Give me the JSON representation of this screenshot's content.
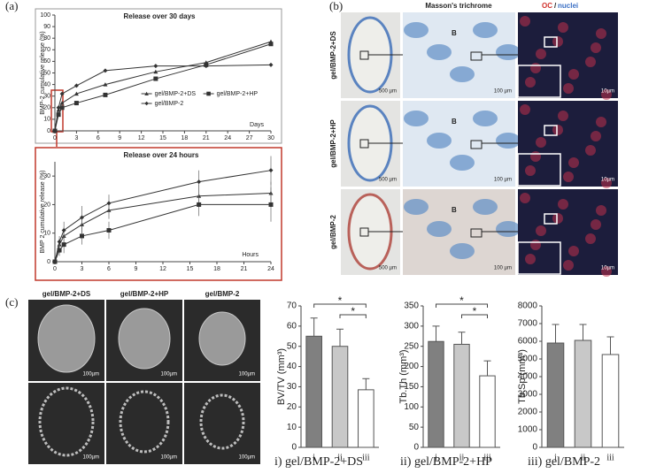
{
  "panels": {
    "a": "(a)",
    "b": "(b)",
    "c": "(c)"
  },
  "histology": {
    "stain": "Masson's trichrome",
    "oc": "OC",
    "slash": "/",
    "nuclei": "nuclei",
    "rows": [
      "gel/BMP-2+DS",
      "gel/BMP-2+HP",
      "gel/BMP-2"
    ],
    "scale_bars": [
      [
        "500 µm",
        "100 µm",
        "10µm"
      ],
      [
        "500 µm",
        "100 µm",
        "10µm"
      ],
      [
        "500 µm",
        "100 µm",
        "10µm"
      ]
    ],
    "bone_labels": [
      "B",
      "B",
      "B"
    ]
  },
  "microct": {
    "columns": [
      "gel/BMP-2+DS",
      "gel/BMP-2+HP",
      "gel/BMP-2"
    ],
    "scale_bars": [
      "100µm",
      "100µm",
      "100µm",
      "100µm",
      "100µm",
      "100µm"
    ]
  },
  "captions": [
    "i) gel/BMP-2+DS",
    "ii) gel/BMP-2+HP",
    "iii) gel/BMP-2"
  ],
  "chart_data": [
    {
      "type": "line",
      "title": "Release over 30 days",
      "y_label": "BMP-2 cumulative release (%)",
      "x_label": "Days",
      "x": [
        0,
        0.5,
        1,
        3,
        7,
        14,
        21,
        30
      ],
      "xlim": [
        0,
        30
      ],
      "xticks": [
        0,
        3,
        6,
        9,
        12,
        15,
        18,
        21,
        24,
        27,
        30
      ],
      "ylim": [
        0,
        100
      ],
      "yticks": [
        0,
        10,
        20,
        30,
        40,
        50,
        60,
        70,
        80,
        90,
        100
      ],
      "legend": "lower right",
      "series": [
        {
          "name": "gel/BMP-2+DS",
          "color": "#333333",
          "marker": "triangle",
          "values": [
            0,
            18,
            24,
            32,
            40,
            51,
            59,
            77
          ]
        },
        {
          "name": "gel/BMP-2+HP",
          "color": "#333333",
          "marker": "square",
          "values": [
            0,
            14,
            20,
            24,
            31,
            45,
            57,
            75
          ]
        },
        {
          "name": "gel/BMP-2",
          "color": "#333333",
          "marker": "diamond",
          "values": [
            0,
            20,
            32,
            39,
            52,
            56,
            56,
            57
          ]
        }
      ]
    },
    {
      "type": "line",
      "title": "Release over 24 hours",
      "y_label": "BMP 2 cumulative release (%)",
      "x_label": "Hours",
      "x": [
        0,
        0.5,
        1,
        3,
        6,
        16,
        24
      ],
      "xlim": [
        0,
        24
      ],
      "xticks": [
        0,
        3,
        6,
        9,
        12,
        15,
        18,
        21,
        24
      ],
      "ylim": [
        0,
        35
      ],
      "yticks": [
        0,
        10,
        20,
        30
      ],
      "series": [
        {
          "name": "gel/BMP-2+DS",
          "color": "#333333",
          "marker": "triangle",
          "values": [
            0,
            6,
            9,
            13,
            18,
            23,
            24
          ],
          "errors": [
            0,
            2,
            3,
            3,
            3,
            4,
            4
          ]
        },
        {
          "name": "gel/BMP-2+HP",
          "color": "#333333",
          "marker": "square",
          "values": [
            0,
            4,
            6,
            9,
            11,
            20,
            20
          ],
          "errors": [
            0,
            2,
            3,
            3,
            3,
            4,
            6
          ]
        },
        {
          "name": "gel/BMP-2",
          "color": "#333333",
          "marker": "diamond",
          "values": [
            0,
            7,
            11,
            15.5,
            20.5,
            28,
            32
          ],
          "errors": [
            0,
            2,
            3,
            4,
            3,
            4,
            5
          ]
        }
      ]
    },
    {
      "type": "bar",
      "y_label": "BV/TV (mm³)",
      "categories": [
        "i",
        "ii",
        "iii"
      ],
      "values": [
        55,
        50,
        28.5
      ],
      "errors": [
        9,
        8.5,
        5.5
      ],
      "colors": [
        "#808080",
        "#c8c8c8",
        "#ffffff"
      ],
      "ylim": [
        0,
        70
      ],
      "yticks": [
        0,
        10,
        20,
        30,
        40,
        50,
        60,
        70
      ],
      "annotations": [
        "*",
        "*"
      ]
    },
    {
      "type": "bar",
      "y_label": "Tb.Th (mm³)",
      "categories": [
        "i",
        "ii",
        "iii"
      ],
      "values": [
        262,
        255,
        177
      ],
      "errors": [
        38,
        30,
        37
      ],
      "colors": [
        "#808080",
        "#c8c8c8",
        "#ffffff"
      ],
      "ylim": [
        0,
        350
      ],
      "yticks": [
        0,
        50,
        100,
        150,
        200,
        250,
        300,
        350
      ],
      "annotations": [
        "*",
        "*"
      ]
    },
    {
      "type": "bar",
      "y_label": "Tb.Sp (mm³)",
      "categories": [
        "i",
        "ii",
        "iii"
      ],
      "values": [
        5900,
        6050,
        5250
      ],
      "errors": [
        1050,
        900,
        1000
      ],
      "colors": [
        "#808080",
        "#c8c8c8",
        "#ffffff"
      ],
      "ylim": [
        0,
        8000
      ],
      "yticks": [
        0,
        1000,
        2000,
        3000,
        4000,
        5000,
        6000,
        7000,
        8000
      ]
    }
  ]
}
